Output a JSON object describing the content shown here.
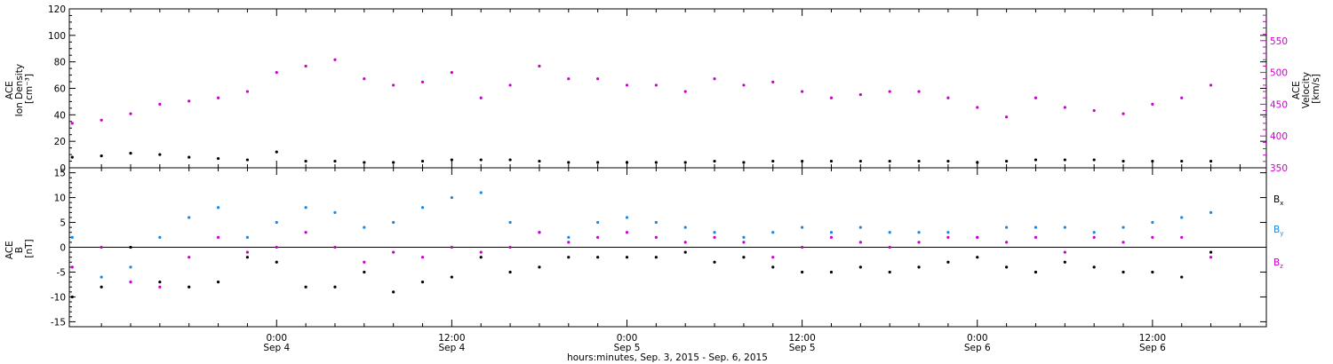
{
  "chart_data": [
    {
      "type": "scatter",
      "panel": "top",
      "ylabel_left": [
        "ACE",
        "Ion Density",
        "[cm⁻³]"
      ],
      "ylabel_right": [
        "ACE",
        "Velocity",
        "[km/s]"
      ],
      "ylim_left": [
        0,
        120
      ],
      "ylim_right": [
        350,
        600
      ],
      "yticks_left": [
        0,
        20,
        40,
        60,
        80,
        100,
        120
      ],
      "yticks_right": [
        350,
        400,
        450,
        500,
        550
      ],
      "xlim_hours": [
        -14.2,
        67.8
      ],
      "grid": false,
      "series": [
        {
          "name": "Ion Density",
          "color": "#000000",
          "axis": "left",
          "x_hours": [
            -14.0,
            -12.0,
            -10.0,
            -8.0,
            -6.0,
            -4.0,
            -2.0,
            0.0,
            2.0,
            4.0,
            6.0,
            8.0,
            10.0,
            12.0,
            14.0,
            16.0,
            18.0,
            20.0,
            22.0,
            24.0,
            26.0,
            28.0,
            30.0,
            32.0,
            34.0,
            36.0,
            38.0,
            40.0,
            42.0,
            44.0,
            46.0,
            48.0,
            50.0,
            52.0,
            54.0,
            56.0,
            58.0,
            60.0,
            62.0,
            64.0
          ],
          "values": [
            8,
            9,
            11,
            10,
            8,
            7,
            6,
            12,
            5,
            5,
            4,
            4,
            5,
            6,
            6,
            6,
            5,
            4,
            4,
            4,
            4,
            4,
            5,
            4,
            5,
            5,
            5,
            5,
            5,
            5,
            5,
            4,
            5,
            6,
            6,
            6,
            5,
            5,
            5,
            5
          ]
        },
        {
          "name": "Velocity",
          "color": "#cc00cc",
          "axis": "right",
          "x_hours": [
            -14.0,
            -12.0,
            -10.0,
            -8.0,
            -6.0,
            -4.0,
            -2.0,
            0.0,
            2.0,
            4.0,
            6.0,
            8.0,
            10.0,
            12.0,
            14.0,
            16.0,
            18.0,
            20.0,
            22.0,
            24.0,
            26.0,
            28.0,
            30.0,
            32.0,
            34.0,
            36.0,
            38.0,
            40.0,
            42.0,
            44.0,
            46.0,
            48.0,
            50.0,
            52.0,
            54.0,
            56.0,
            58.0,
            60.0,
            62.0,
            64.0
          ],
          "values": [
            420,
            425,
            435,
            450,
            455,
            460,
            470,
            500,
            510,
            520,
            490,
            480,
            485,
            500,
            460,
            480,
            510,
            490,
            490,
            480,
            480,
            470,
            490,
            480,
            485,
            470,
            460,
            465,
            470,
            470,
            460,
            445,
            430,
            460,
            445,
            440,
            435,
            450,
            460,
            480
          ]
        }
      ]
    },
    {
      "type": "scatter",
      "panel": "bottom",
      "ylabel_left": [
        "ACE",
        "B",
        "[nT]"
      ],
      "ylim": [
        -16,
        16
      ],
      "yticks": [
        -15,
        -10,
        -5,
        0,
        5,
        10,
        15
      ],
      "zero_line": true,
      "xlim_hours": [
        -14.2,
        67.8
      ],
      "grid": false,
      "legend": "right",
      "series": [
        {
          "name": "Bx",
          "label_main": "B",
          "label_sub": "x",
          "color": "#000000",
          "x_hours": [
            -14.0,
            -12.0,
            -10.0,
            -8.0,
            -6.0,
            -4.0,
            -2.0,
            0.0,
            2.0,
            4.0,
            6.0,
            8.0,
            10.0,
            12.0,
            14.0,
            16.0,
            18.0,
            20.0,
            22.0,
            24.0,
            26.0,
            28.0,
            30.0,
            32.0,
            34.0,
            36.0,
            38.0,
            40.0,
            42.0,
            44.0,
            46.0,
            48.0,
            50.0,
            52.0,
            54.0,
            56.0,
            58.0,
            60.0,
            62.0,
            64.0
          ],
          "values": [
            -10,
            -8,
            0,
            -7,
            -8,
            -7,
            -2,
            -3,
            -8,
            -8,
            -5,
            -9,
            -7,
            -6,
            -2,
            -5,
            -4,
            -2,
            -2,
            -2,
            -2,
            -1,
            -3,
            -2,
            -4,
            -5,
            -5,
            -4,
            -5,
            -4,
            -3,
            -2,
            -4,
            -5,
            -3,
            -4,
            -5,
            -5,
            -6,
            -1
          ]
        },
        {
          "name": "By",
          "label_main": "B",
          "label_sub": "y",
          "color": "#1a87e0",
          "x_hours": [
            -14.0,
            -12.0,
            -10.0,
            -8.0,
            -6.0,
            -4.0,
            -2.0,
            0.0,
            2.0,
            4.0,
            6.0,
            8.0,
            10.0,
            12.0,
            14.0,
            16.0,
            18.0,
            20.0,
            22.0,
            24.0,
            26.0,
            28.0,
            30.0,
            32.0,
            34.0,
            36.0,
            38.0,
            40.0,
            42.0,
            44.0,
            46.0,
            48.0,
            50.0,
            52.0,
            54.0,
            56.0,
            58.0,
            60.0,
            62.0,
            64.0
          ],
          "values": [
            2,
            -6,
            -4,
            2,
            6,
            8,
            2,
            5,
            8,
            7,
            4,
            5,
            8,
            10,
            11,
            5,
            3,
            2,
            5,
            6,
            5,
            4,
            3,
            2,
            3,
            4,
            3,
            4,
            3,
            3,
            3,
            2,
            4,
            4,
            4,
            3,
            4,
            5,
            6,
            7
          ]
        },
        {
          "name": "Bz",
          "label_main": "B",
          "label_sub": "z",
          "color": "#cc00cc",
          "x_hours": [
            -14.0,
            -12.0,
            -10.0,
            -8.0,
            -6.0,
            -4.0,
            -2.0,
            0.0,
            2.0,
            4.0,
            6.0,
            8.0,
            10.0,
            12.0,
            14.0,
            16.0,
            18.0,
            20.0,
            22.0,
            24.0,
            26.0,
            28.0,
            30.0,
            32.0,
            34.0,
            36.0,
            38.0,
            40.0,
            42.0,
            44.0,
            46.0,
            48.0,
            50.0,
            52.0,
            54.0,
            56.0,
            58.0,
            60.0,
            62.0,
            64.0
          ],
          "values": [
            -4,
            0,
            -7,
            -8,
            -2,
            2,
            -1,
            0,
            3,
            0,
            -3,
            -1,
            -2,
            0,
            -1,
            0,
            3,
            1,
            2,
            3,
            2,
            1,
            2,
            1,
            -2,
            0,
            2,
            1,
            0,
            1,
            2,
            2,
            1,
            2,
            -1,
            2,
            1,
            2,
            2,
            -2
          ]
        }
      ]
    }
  ],
  "xaxis": {
    "ticks": [
      {
        "hours": 0,
        "time": "0:00",
        "date": "Sep 4"
      },
      {
        "hours": 12,
        "time": "12:00",
        "date": "Sep 4"
      },
      {
        "hours": 24,
        "time": "0:00",
        "date": "Sep 5"
      },
      {
        "hours": 36,
        "time": "12:00",
        "date": "Sep 5"
      },
      {
        "hours": 48,
        "time": "0:00",
        "date": "Sep 6"
      },
      {
        "hours": 60,
        "time": "12:00",
        "date": "Sep 6"
      }
    ],
    "xlabel": "hours:minutes, Sep.  3, 2015 - Sep.  6, 2015"
  },
  "colors": {
    "axis": "#000000",
    "density": "#000000",
    "velocity": "#cc00cc",
    "bx": "#000000",
    "by": "#1a87e0",
    "bz": "#cc00cc"
  }
}
